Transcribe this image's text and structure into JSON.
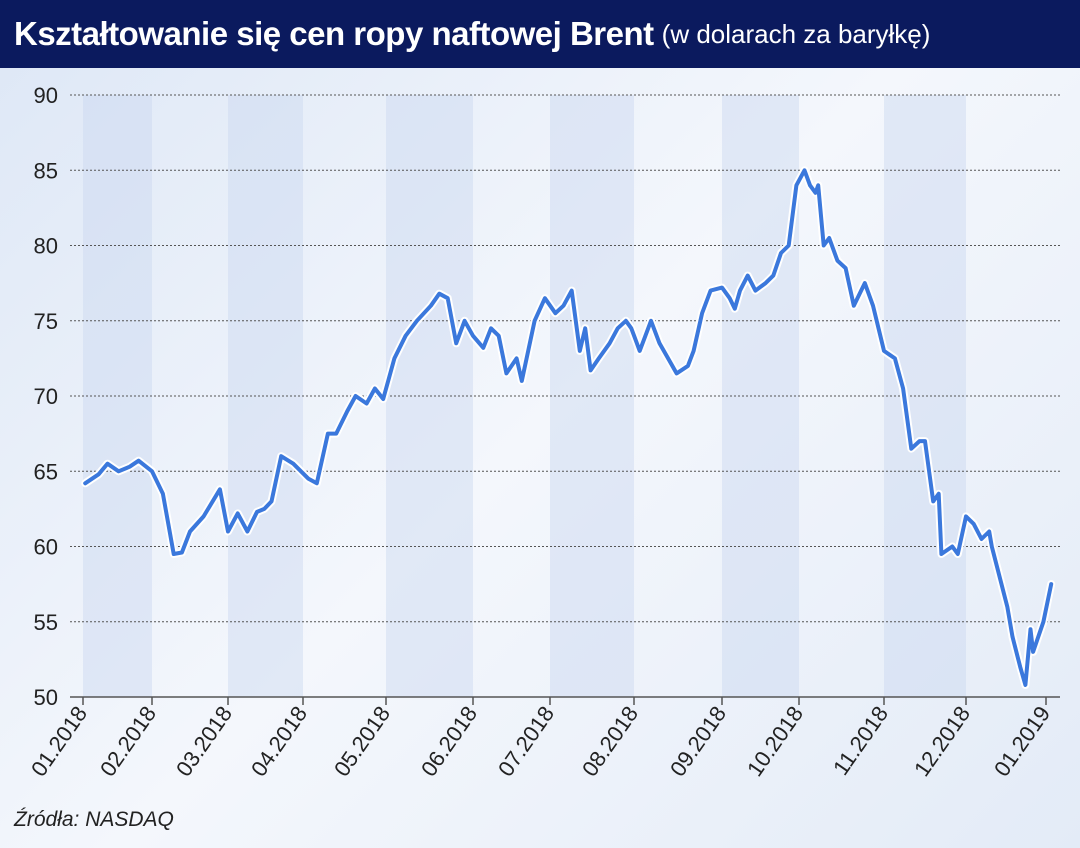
{
  "title": {
    "main": "Kształtowanie się cen ropy naftowej Brent",
    "sub": "(w dolarach za baryłkę)"
  },
  "source": "Źródła: NASDAQ",
  "colors": {
    "title_bar": "#0b1a5e",
    "line": "#3b78dc",
    "line_outline": "#ffffff",
    "band": "#c9d8f0"
  },
  "chart_data": {
    "type": "line",
    "title": "Kształtowanie się cen ropy naftowej Brent (w dolarach za baryłkę)",
    "xlabel": "",
    "ylabel": "",
    "ylim": [
      50,
      90
    ],
    "yticks": [
      50,
      55,
      60,
      65,
      70,
      75,
      80,
      85,
      90
    ],
    "xticks": [
      "01.2018",
      "02.2018",
      "03.2018",
      "04.2018",
      "05.2018",
      "06.2018",
      "07.2018",
      "08.2018",
      "09.2018",
      "10.2018",
      "11.2018",
      "12.2018",
      "01.2019"
    ],
    "grid": "horizontal dotted",
    "points": [
      [
        "2018-01-02",
        64.2
      ],
      [
        "2018-01-08",
        64.8
      ],
      [
        "2018-01-12",
        65.5
      ],
      [
        "2018-01-17",
        65.0
      ],
      [
        "2018-01-22",
        65.3
      ],
      [
        "2018-01-26",
        65.7
      ],
      [
        "2018-02-01",
        65.0
      ],
      [
        "2018-02-05",
        63.5
      ],
      [
        "2018-02-07",
        61.5
      ],
      [
        "2018-02-09",
        59.5
      ],
      [
        "2018-02-12",
        59.6
      ],
      [
        "2018-02-15",
        61.0
      ],
      [
        "2018-02-20",
        62.0
      ],
      [
        "2018-02-26",
        63.8
      ],
      [
        "2018-03-01",
        61.0
      ],
      [
        "2018-03-05",
        62.2
      ],
      [
        "2018-03-09",
        61.0
      ],
      [
        "2018-03-13",
        62.3
      ],
      [
        "2018-03-16",
        62.5
      ],
      [
        "2018-03-19",
        63.0
      ],
      [
        "2018-03-23",
        66.0
      ],
      [
        "2018-03-28",
        65.5
      ],
      [
        "2018-04-03",
        64.5
      ],
      [
        "2018-04-06",
        64.2
      ],
      [
        "2018-04-10",
        67.5
      ],
      [
        "2018-04-13",
        67.5
      ],
      [
        "2018-04-17",
        69.0
      ],
      [
        "2018-04-20",
        70.0
      ],
      [
        "2018-04-24",
        69.5
      ],
      [
        "2018-04-27",
        70.5
      ],
      [
        "2018-04-30",
        69.8
      ],
      [
        "2018-05-04",
        72.5
      ],
      [
        "2018-05-08",
        74.0
      ],
      [
        "2018-05-12",
        75.0
      ],
      [
        "2018-05-17",
        76.0
      ],
      [
        "2018-05-20",
        76.8
      ],
      [
        "2018-05-23",
        76.5
      ],
      [
        "2018-05-26",
        73.5
      ],
      [
        "2018-05-29",
        75.0
      ],
      [
        "2018-06-01",
        74.0
      ],
      [
        "2018-06-05",
        73.2
      ],
      [
        "2018-06-08",
        74.5
      ],
      [
        "2018-06-11",
        74.0
      ],
      [
        "2018-06-14",
        71.5
      ],
      [
        "2018-06-18",
        72.5
      ],
      [
        "2018-06-20",
        71.0
      ],
      [
        "2018-06-25",
        75.0
      ],
      [
        "2018-06-29",
        76.5
      ],
      [
        "2018-07-03",
        75.5
      ],
      [
        "2018-07-06",
        76.0
      ],
      [
        "2018-07-09",
        77.0
      ],
      [
        "2018-07-12",
        73.0
      ],
      [
        "2018-07-14",
        74.5
      ],
      [
        "2018-07-16",
        71.7
      ],
      [
        "2018-07-19",
        72.5
      ],
      [
        "2018-07-23",
        73.5
      ],
      [
        "2018-07-26",
        74.5
      ],
      [
        "2018-07-29",
        75.0
      ],
      [
        "2018-07-31",
        74.5
      ],
      [
        "2018-08-03",
        73.0
      ],
      [
        "2018-08-05",
        74.0
      ],
      [
        "2018-08-07",
        75.0
      ],
      [
        "2018-08-10",
        73.5
      ],
      [
        "2018-08-13",
        72.5
      ],
      [
        "2018-08-16",
        71.5
      ],
      [
        "2018-08-20",
        72.0
      ],
      [
        "2018-08-22",
        73.0
      ],
      [
        "2018-08-25",
        75.5
      ],
      [
        "2018-08-28",
        77.0
      ],
      [
        "2018-09-01",
        77.2
      ],
      [
        "2018-09-04",
        76.5
      ],
      [
        "2018-09-06",
        75.8
      ],
      [
        "2018-09-08",
        77.0
      ],
      [
        "2018-09-11",
        78.0
      ],
      [
        "2018-09-14",
        77.0
      ],
      [
        "2018-09-18",
        77.5
      ],
      [
        "2018-09-21",
        78.0
      ],
      [
        "2018-09-24",
        79.5
      ],
      [
        "2018-09-27",
        80.0
      ],
      [
        "2018-09-30",
        84.0
      ],
      [
        "2018-10-03",
        85.0
      ],
      [
        "2018-10-05",
        84.0
      ],
      [
        "2018-10-07",
        83.5
      ],
      [
        "2018-10-08",
        84.0
      ],
      [
        "2018-10-10",
        80.0
      ],
      [
        "2018-10-12",
        80.5
      ],
      [
        "2018-10-15",
        79.0
      ],
      [
        "2018-10-18",
        78.5
      ],
      [
        "2018-10-21",
        76.0
      ],
      [
        "2018-10-25",
        77.5
      ],
      [
        "2018-10-28",
        76.0
      ],
      [
        "2018-11-01",
        73.0
      ],
      [
        "2018-11-05",
        72.5
      ],
      [
        "2018-11-08",
        70.5
      ],
      [
        "2018-11-11",
        66.5
      ],
      [
        "2018-11-14",
        67.0
      ],
      [
        "2018-11-16",
        67.0
      ],
      [
        "2018-11-19",
        63.0
      ],
      [
        "2018-11-21",
        63.5
      ],
      [
        "2018-11-22",
        59.5
      ],
      [
        "2018-11-26",
        60.0
      ],
      [
        "2018-11-28",
        59.5
      ],
      [
        "2018-12-01",
        62.0
      ],
      [
        "2018-12-04",
        61.5
      ],
      [
        "2018-12-07",
        60.5
      ],
      [
        "2018-12-10",
        61.0
      ],
      [
        "2018-12-11",
        60.0
      ],
      [
        "2018-12-17",
        56.0
      ],
      [
        "2018-12-19",
        54.0
      ],
      [
        "2018-12-22",
        52.0
      ],
      [
        "2018-12-24",
        50.8
      ],
      [
        "2018-12-26",
        54.5
      ],
      [
        "2018-12-27",
        53.0
      ],
      [
        "2018-12-31",
        55.0
      ],
      [
        "2019-01-03",
        57.5
      ]
    ]
  }
}
